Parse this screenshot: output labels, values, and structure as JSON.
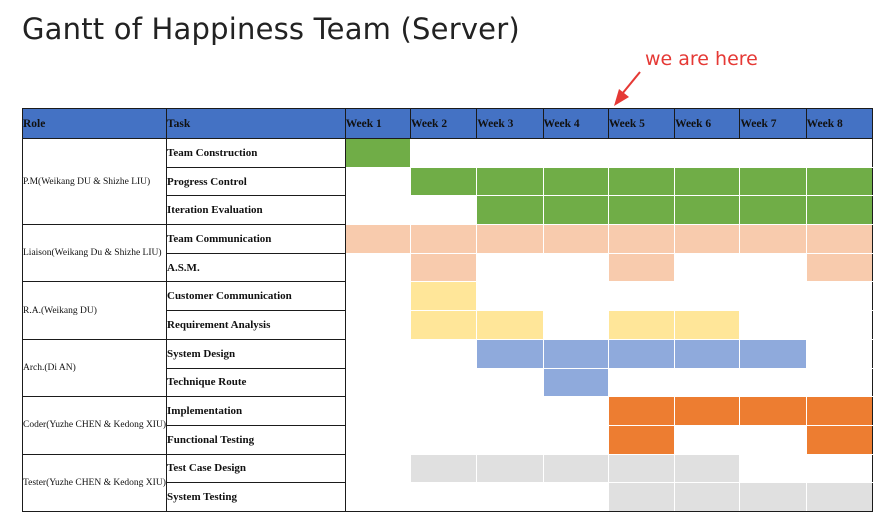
{
  "title": "Gantt of Happiness Team (Server)",
  "annotation": "we are here",
  "colors": {
    "header": "#4472c4",
    "green": "#70ad47",
    "peach": "#f8cbad",
    "yellow": "#ffe699",
    "blue": "#8faadc",
    "orange": "#ed7d31",
    "gray": "#e0e0e0",
    "annotation": "#e53935"
  },
  "headers": {
    "role": "Role",
    "task": "Task",
    "weeks": [
      "Week 1",
      "Week 2",
      "Week 3",
      "Week 4",
      "Week 5",
      "Week 6",
      "Week 7",
      "Week 8"
    ]
  },
  "roles": [
    {
      "label": "P.M(Weikang DU & Shizhe LIU)",
      "tasks": [
        {
          "name": "Team Construction",
          "color": "green",
          "weeks": [
            1
          ]
        },
        {
          "name": "Progress Control",
          "color": "green",
          "weeks": [
            2,
            3,
            4,
            5,
            6,
            7,
            8
          ]
        },
        {
          "name": "Iteration Evaluation",
          "color": "green",
          "weeks": [
            3,
            4,
            5,
            6,
            7,
            8
          ]
        }
      ]
    },
    {
      "label": "Liaison(Weikang Du & Shizhe LIU)",
      "tasks": [
        {
          "name": "Team Communication",
          "color": "peach",
          "weeks": [
            1,
            2,
            3,
            4,
            5,
            6,
            7,
            8
          ]
        },
        {
          "name": "A.S.M.",
          "color": "peach",
          "weeks": [
            2,
            5,
            8
          ]
        }
      ]
    },
    {
      "label": "R.A.(Weikang DU)",
      "tasks": [
        {
          "name": "Customer Communication",
          "color": "yellow",
          "weeks": [
            2
          ]
        },
        {
          "name": "Requirement Analysis",
          "color": "yellow",
          "weeks": [
            2,
            3,
            5,
            6
          ]
        }
      ]
    },
    {
      "label": "Arch.(Di AN)",
      "tasks": [
        {
          "name": "System Design",
          "color": "blue",
          "weeks": [
            3,
            4,
            5,
            6,
            7
          ]
        },
        {
          "name": "Technique Route",
          "color": "blue",
          "weeks": [
            4
          ]
        }
      ]
    },
    {
      "label": "Coder(Yuzhe CHEN & Kedong XIU)",
      "tasks": [
        {
          "name": "Implementation",
          "color": "orange",
          "weeks": [
            5,
            6,
            7,
            8
          ]
        },
        {
          "name": "Functional Testing",
          "color": "orange",
          "weeks": [
            5,
            8
          ]
        }
      ]
    },
    {
      "label": "Tester(Yuzhe CHEN & Kedong XIU)",
      "tasks": [
        {
          "name": "Test Case Design",
          "color": "gray",
          "weeks": [
            2,
            3,
            4,
            5,
            6
          ]
        },
        {
          "name": "System Testing",
          "color": "gray",
          "weeks": [
            5,
            6,
            7,
            8
          ]
        }
      ]
    }
  ]
}
